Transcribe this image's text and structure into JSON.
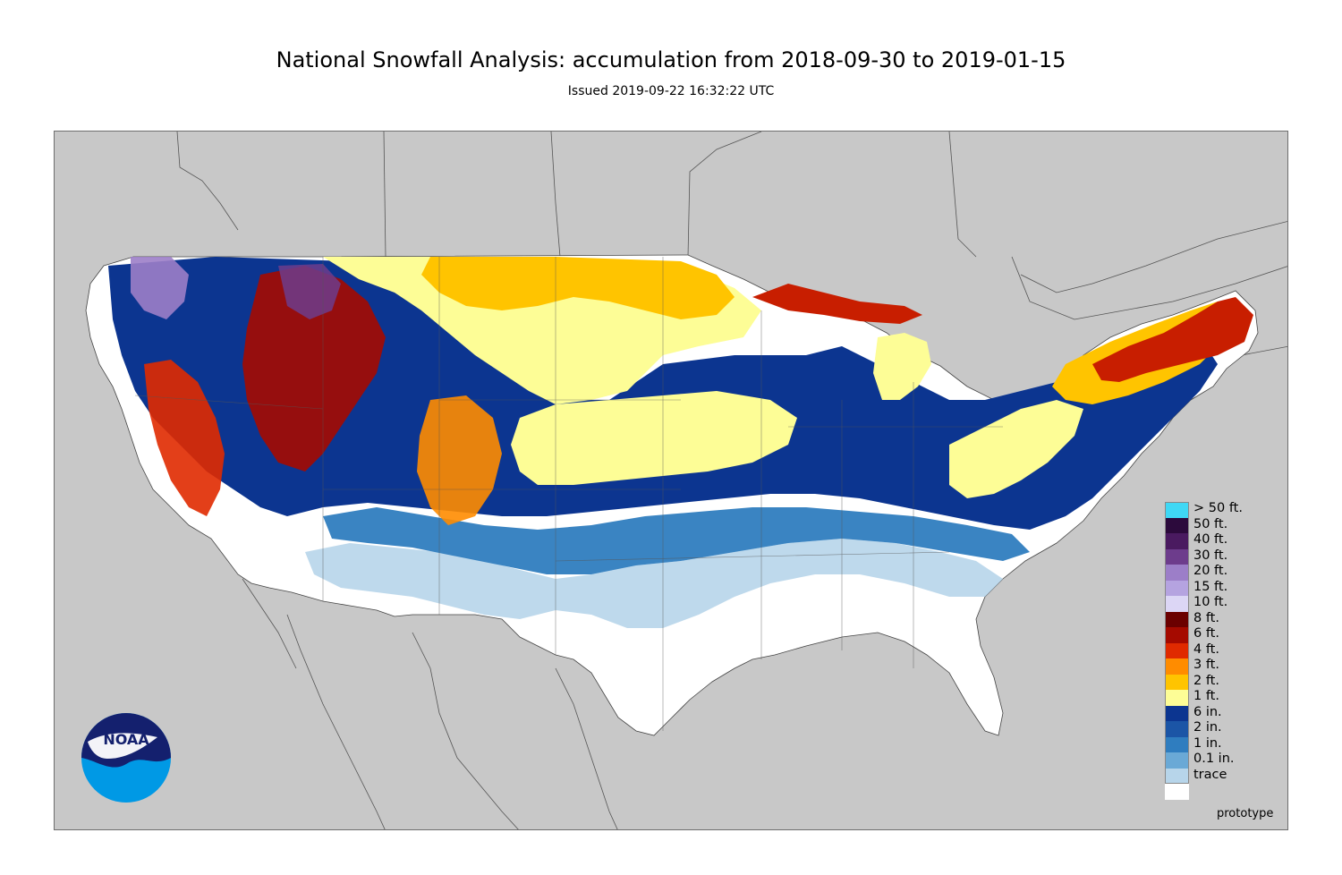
{
  "header": {
    "title": "National Snowfall Analysis: accumulation from 2018-09-30 to 2019-01-15",
    "issued": "Issued 2019-09-22 16:32:22 UTC"
  },
  "map": {
    "background_color": "#c8c8c8",
    "boundary_color": "#555555"
  },
  "legend": {
    "items": [
      {
        "label": "> 50 ft.",
        "color": "#3fd8f5"
      },
      {
        "label": "50 ft.",
        "color": "#2c0a3c"
      },
      {
        "label": "40 ft.",
        "color": "#4a1a60"
      },
      {
        "label": "30 ft.",
        "color": "#6d3c8c"
      },
      {
        "label": "20 ft.",
        "color": "#9c7ec8"
      },
      {
        "label": "15 ft.",
        "color": "#b5a3e0"
      },
      {
        "label": "10 ft.",
        "color": "#dcd6f5"
      },
      {
        "label": "8 ft.",
        "color": "#6b0000"
      },
      {
        "label": "6 ft.",
        "color": "#a50a00"
      },
      {
        "label": "4 ft.",
        "color": "#e02a00"
      },
      {
        "label": "3 ft.",
        "color": "#ff8c00"
      },
      {
        "label": "2 ft.",
        "color": "#ffc400"
      },
      {
        "label": "1 ft.",
        "color": "#fdfd96"
      },
      {
        "label": "6 in.",
        "color": "#0c3590"
      },
      {
        "label": "2 in.",
        "color": "#1b55a6"
      },
      {
        "label": "1 in.",
        "color": "#2f7dbf"
      },
      {
        "label": "0.1 in.",
        "color": "#6aa9d6"
      },
      {
        "label": "trace",
        "color": "#b7d5ea"
      },
      {
        "label": "",
        "color": "#ffffff"
      }
    ]
  },
  "footer": {
    "prototype_label": "prototype",
    "logo_text": "NOAA"
  }
}
